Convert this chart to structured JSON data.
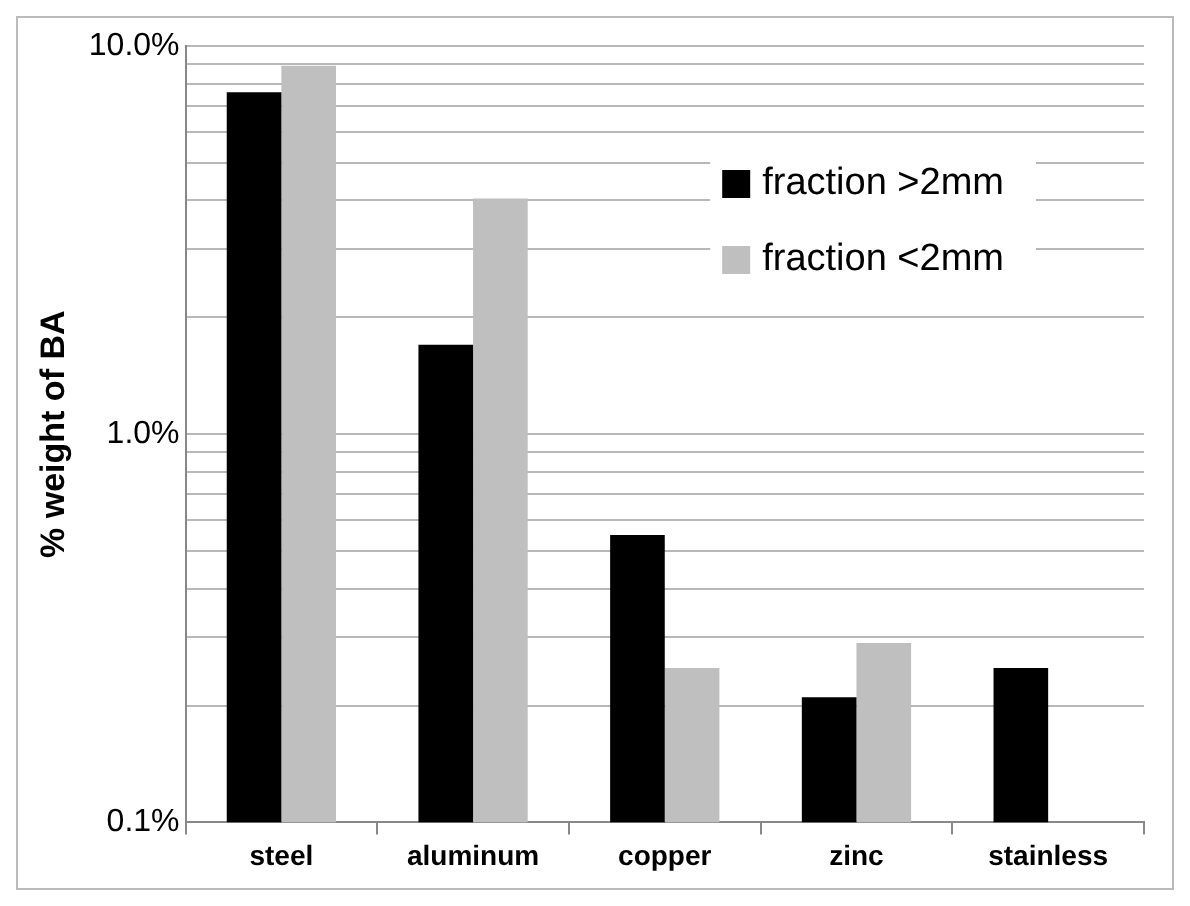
{
  "chart_data": {
    "type": "bar",
    "ylabel": "% weight of BA",
    "categories": [
      "steel",
      "aluminum",
      "copper",
      "zinc",
      "stainless"
    ],
    "series": [
      {
        "name": "fraction >2mm",
        "color": "#000000",
        "values": [
          7.6,
          1.7,
          0.55,
          0.21,
          0.25
        ]
      },
      {
        "name": "fraction <2mm",
        "color": "#bfbfbf",
        "values": [
          8.9,
          4.05,
          0.25,
          0.29,
          null
        ]
      }
    ],
    "log": "y",
    "ylim": [
      0.1,
      10
    ],
    "yticks": [
      {
        "value": 0.1,
        "label": "0.1%"
      },
      {
        "value": 0.2,
        "label": null
      },
      {
        "value": 0.3,
        "label": null
      },
      {
        "value": 0.4,
        "label": null
      },
      {
        "value": 0.5,
        "label": null
      },
      {
        "value": 0.6,
        "label": null
      },
      {
        "value": 0.7,
        "label": null
      },
      {
        "value": 0.8,
        "label": null
      },
      {
        "value": 0.9,
        "label": null
      },
      {
        "value": 1,
        "label": "1.0%"
      },
      {
        "value": 2,
        "label": null
      },
      {
        "value": 3,
        "label": null
      },
      {
        "value": 4,
        "label": null
      },
      {
        "value": 5,
        "label": null
      },
      {
        "value": 6,
        "label": null
      },
      {
        "value": 7,
        "label": null
      },
      {
        "value": 8,
        "label": null
      },
      {
        "value": 9,
        "label": null
      },
      {
        "value": 10,
        "label": "10.0%"
      }
    ],
    "grid": "y",
    "legend": "top right"
  }
}
